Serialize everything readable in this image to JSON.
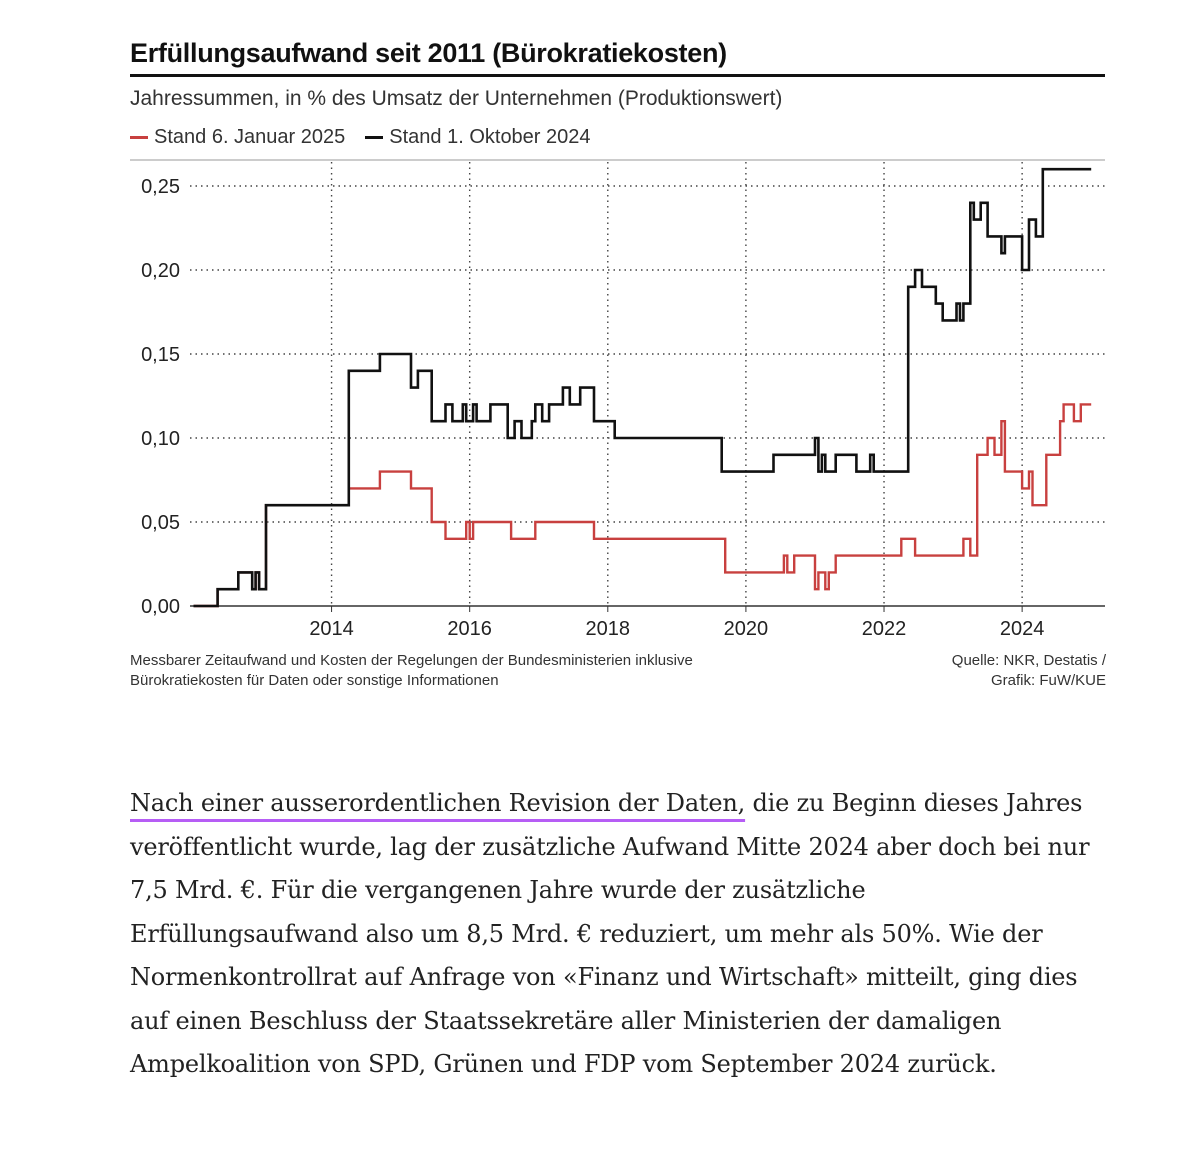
{
  "chart_header": {
    "title": "Erfüllungsaufwand seit 2011 (Bürokratiekosten)",
    "subtitle": "Jahressummen, in % des Umsatz der Unternehmen (Produktionswert)"
  },
  "footer": {
    "note_line1": "Messbarer Zeitaufwand und Kosten der Regelungen der Bundesministerien inklusive",
    "note_line2": "Bürokratiekosten für Daten oder sonstige Informationen",
    "source_line1": "Quelle: NKR, Destatis /",
    "source_line2": "Grafik: FuW/KUE"
  },
  "article": {
    "highlighted": "Nach einer ausserordentlichen Revision der Daten,",
    "rest": " die zu Beginn dieses Jahres veröffentlicht wurde, lag der zusätzliche Aufwand Mitte 2024 aber doch bei nur 7,5 Mrd. €. Für die vergangenen Jahre wurde der zusätzliche Erfüllungsaufwand also um 8,5 Mrd. € reduziert, um mehr als 50%. Wie der Normenkontrollrat auf Anfrage von «Finanz und Wirtschaft» mitteilt, ging dies auf einen Beschluss der Staatssekretäre aller Ministerien der damaligen Ampelkoalition von SPD, Grünen und FDP vom September 2024 zurück.",
    "highlight_color": "#b65df5"
  },
  "chart_data": {
    "type": "line",
    "step": true,
    "title": "Erfüllungsaufwand seit 2011 (Bürokratiekosten)",
    "subtitle": "Jahressummen, in % des Umsatz der Unternehmen (Produktionswert)",
    "xlabel": "",
    "ylabel": "",
    "xlim": [
      2011.95,
      2025.2
    ],
    "ylim": [
      0,
      0.25
    ],
    "x_ticks": [
      2014,
      2016,
      2018,
      2020,
      2022,
      2024
    ],
    "x_tick_labels": [
      "2014",
      "2016",
      "2018",
      "2020",
      "2022",
      "2024"
    ],
    "y_ticks": [
      0,
      0.05,
      0.1,
      0.15,
      0.2,
      0.25
    ],
    "y_tick_labels": [
      "0,00",
      "0,05",
      "0,10",
      "0,15",
      "0,20",
      "0,25"
    ],
    "grid": {
      "y": true,
      "x": true,
      "style": "dotted"
    },
    "legend_position": "top-left",
    "series": [
      {
        "name": "Stand 6. Januar 2025",
        "color": "#c8403f",
        "x": [
          2012.0,
          2012.35,
          2012.65,
          2012.85,
          2012.9,
          2012.95,
          2013.05,
          2013.15,
          2013.6,
          2014.25,
          2014.7,
          2015.15,
          2015.25,
          2015.45,
          2015.65,
          2015.95,
          2016.0,
          2016.05,
          2016.6,
          2016.95,
          2017.15,
          2017.45,
          2017.65,
          2017.8,
          2018.0,
          2018.6,
          2019.25,
          2019.7,
          2020.55,
          2020.6,
          2020.7,
          2021.0,
          2021.05,
          2021.15,
          2021.2,
          2021.3,
          2022.25,
          2022.45,
          2022.6,
          2023.15,
          2023.25,
          2023.35,
          2023.5,
          2023.6,
          2023.7,
          2023.75,
          2023.95,
          2024.0,
          2024.1,
          2024.15,
          2024.35,
          2024.55,
          2024.6,
          2024.75,
          2024.85,
          2024.95,
          2025.0
        ],
        "y": [
          0.0,
          0.01,
          0.02,
          0.01,
          0.02,
          0.01,
          0.06,
          0.06,
          0.06,
          0.07,
          0.08,
          0.07,
          0.07,
          0.05,
          0.04,
          0.05,
          0.04,
          0.05,
          0.04,
          0.05,
          0.05,
          0.05,
          0.05,
          0.04,
          0.04,
          0.04,
          0.04,
          0.02,
          0.03,
          0.02,
          0.03,
          0.01,
          0.02,
          0.01,
          0.02,
          0.03,
          0.04,
          0.03,
          0.03,
          0.04,
          0.03,
          0.09,
          0.1,
          0.09,
          0.11,
          0.08,
          0.08,
          0.07,
          0.08,
          0.06,
          0.09,
          0.11,
          0.12,
          0.11,
          0.12,
          0.12,
          0.12
        ]
      },
      {
        "name": "Stand 1. Oktober 2024",
        "color": "#111111",
        "x": [
          2012.0,
          2012.35,
          2012.65,
          2012.85,
          2012.9,
          2012.95,
          2013.05,
          2013.15,
          2013.6,
          2014.25,
          2014.7,
          2015.15,
          2015.25,
          2015.45,
          2015.65,
          2015.75,
          2015.9,
          2015.95,
          2016.05,
          2016.1,
          2016.3,
          2016.55,
          2016.65,
          2016.75,
          2016.9,
          2016.95,
          2017.05,
          2017.15,
          2017.35,
          2017.45,
          2017.6,
          2017.8,
          2018.1,
          2018.6,
          2019.25,
          2019.65,
          2020.0,
          2020.4,
          2020.7,
          2021.0,
          2021.05,
          2021.1,
          2021.15,
          2021.3,
          2021.6,
          2021.8,
          2021.85,
          2022.15,
          2022.35,
          2022.45,
          2022.55,
          2022.75,
          2022.85,
          2023.05,
          2023.1,
          2023.15,
          2023.25,
          2023.3,
          2023.4,
          2023.5,
          2023.55,
          2023.7,
          2023.75,
          2024.0,
          2024.1,
          2024.2,
          2024.3,
          2024.55,
          2024.6,
          2024.75,
          2024.8,
          2024.95,
          2025.0
        ],
        "y": [
          0.0,
          0.01,
          0.02,
          0.01,
          0.02,
          0.01,
          0.06,
          0.06,
          0.06,
          0.14,
          0.15,
          0.13,
          0.14,
          0.11,
          0.12,
          0.11,
          0.12,
          0.11,
          0.12,
          0.11,
          0.12,
          0.1,
          0.11,
          0.1,
          0.11,
          0.12,
          0.11,
          0.12,
          0.13,
          0.12,
          0.13,
          0.11,
          0.1,
          0.1,
          0.1,
          0.08,
          0.08,
          0.09,
          0.09,
          0.1,
          0.08,
          0.09,
          0.08,
          0.09,
          0.08,
          0.09,
          0.08,
          0.08,
          0.19,
          0.2,
          0.19,
          0.18,
          0.17,
          0.18,
          0.17,
          0.18,
          0.24,
          0.23,
          0.24,
          0.22,
          0.22,
          0.21,
          0.22,
          0.2,
          0.23,
          0.22,
          0.26,
          0.26,
          0.26,
          0.26,
          0.26,
          0.26,
          0.26
        ]
      }
    ]
  }
}
